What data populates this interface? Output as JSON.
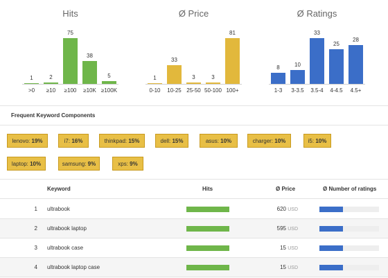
{
  "charts": [
    {
      "title": "Hits",
      "color": "#6fb64a",
      "categories": [
        ">0",
        "≥10",
        "≥100",
        "≥10K",
        "≥100K"
      ],
      "values": [
        1,
        2,
        75,
        38,
        5
      ]
    },
    {
      "title": "Ø Price",
      "color": "#e2b83c",
      "categories": [
        "0-10",
        "10-25",
        "25-50",
        "50-100",
        "100+"
      ],
      "values": [
        1,
        33,
        3,
        3,
        81
      ]
    },
    {
      "title": "Ø Ratings",
      "color": "#3b6ec8",
      "categories": [
        "1-3",
        "3-3.5",
        "3.5-4",
        "4-4.5",
        "4.5+"
      ],
      "values": [
        8,
        10,
        33,
        25,
        28
      ]
    }
  ],
  "chart_data": [
    {
      "type": "bar",
      "title": "Hits",
      "categories": [
        ">0",
        "≥10",
        "≥100",
        "≥10K",
        "≥100K"
      ],
      "values": [
        1,
        2,
        75,
        38,
        5
      ]
    },
    {
      "type": "bar",
      "title": "Ø Price",
      "categories": [
        "0-10",
        "10-25",
        "25-50",
        "50-100",
        "100+"
      ],
      "values": [
        1,
        33,
        3,
        3,
        81
      ]
    },
    {
      "type": "bar",
      "title": "Ø Ratings",
      "categories": [
        "1-3",
        "3-3.5",
        "3.5-4",
        "4-4.5",
        "4.5+"
      ],
      "values": [
        8,
        10,
        33,
        25,
        28
      ]
    }
  ],
  "keywords_section": {
    "title": "Frequent Keyword Components",
    "tags": [
      {
        "word": "lenovo:",
        "pct": "19%"
      },
      {
        "word": "i7:",
        "pct": "16%"
      },
      {
        "word": "thinkpad:",
        "pct": "15%"
      },
      {
        "word": "dell:",
        "pct": "15%"
      },
      {
        "word": "asus:",
        "pct": "10%"
      },
      {
        "word": "charger:",
        "pct": "10%"
      },
      {
        "word": "i5:",
        "pct": "10%"
      },
      {
        "word": "laptop:",
        "pct": "10%"
      },
      {
        "word": "samsung:",
        "pct": "9%"
      },
      {
        "word": "xps:",
        "pct": "9%"
      }
    ]
  },
  "table": {
    "headers": {
      "keyword": "Keyword",
      "hits": "Hits",
      "price": "Ø Price",
      "ratings": "Ø Number of ratings"
    },
    "currency": "USD",
    "rows": [
      {
        "n": "1",
        "keyword": "ultrabook",
        "price": "620",
        "hits_fraction": 1.0,
        "ratings_fraction": 0.4
      },
      {
        "n": "2",
        "keyword": "ultrabook laptop",
        "price": "595",
        "hits_fraction": 1.0,
        "ratings_fraction": 0.4
      },
      {
        "n": "3",
        "keyword": "ultrabook case",
        "price": "15",
        "hits_fraction": 1.0,
        "ratings_fraction": 0.4
      },
      {
        "n": "4",
        "keyword": "ultrabook laptop case",
        "price": "15",
        "hits_fraction": 1.0,
        "ratings_fraction": 0.4
      }
    ]
  }
}
